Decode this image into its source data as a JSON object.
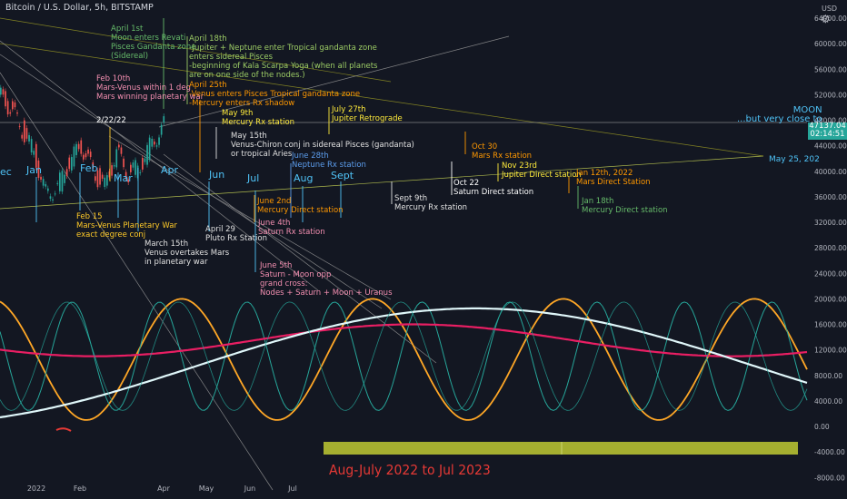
{
  "header": {
    "title": "Bitcoin / U.S. Dollar, 5h, BITSTAMP",
    "currency": "USD",
    "settings_icon": "gear-icon"
  },
  "price_tag": {
    "price": "47137.04",
    "countdown": "02:14:51"
  },
  "footer_caption": "Aug-July 2022 to Jul 2023",
  "moon_label": "MOON\n...but very close to",
  "may25_label": "May 25, 202",
  "colors": {
    "background": "#131722",
    "bull_candle": "#26a69a",
    "bear_candle": "#ef5350",
    "orange_wave": "#ffa726",
    "teal_wave": "#26a69a",
    "pink_wave": "#e91e63",
    "white_wave": "#e0f7fa",
    "yellow_bar": "#c0ca33"
  },
  "month_markers": [
    {
      "label": "ec",
      "color": "#4fc3f7"
    },
    {
      "label": "Jan",
      "color": "#4fc3f7"
    },
    {
      "label": "Feb",
      "color": "#4fc3f7"
    },
    {
      "label": "Mar",
      "color": "#4fc3f7"
    },
    {
      "label": "Apr",
      "color": "#4fc3f7"
    },
    {
      "label": "Jun",
      "color": "#4fc3f7"
    },
    {
      "label": "Jul",
      "color": "#4fc3f7"
    },
    {
      "label": "Aug",
      "color": "#4fc3f7"
    },
    {
      "label": "Sept",
      "color": "#4fc3f7"
    }
  ],
  "annotations": [
    {
      "text": "April 1st\nMoon enters Revati\nPisces Gandanta zone\n(Sidereal)",
      "color": "#66bb6a"
    },
    {
      "text": "April 18th\n-Jupiter + Neptune enter Tropical gandanta zone\nenters sidereal Pisces\n-beginning of Kala Scarpa Yoga (when all planets\nare on one side of the nodes.)",
      "color": "#9ccc65"
    },
    {
      "text": "Feb 10th\nMars-Venus within 1 deg\nMars winning planetary war",
      "color": "#f48fb1"
    },
    {
      "text": "April 25th\n-Venus enters Pisces Tropical gandanta zone\n-Mercury enters Rx shadow",
      "color": "#ff9800"
    },
    {
      "text": "2/22/22",
      "color": "#ffffff"
    },
    {
      "text": "May 9th\nMercury Rx station",
      "color": "#ffeb3b"
    },
    {
      "text": "July 27th\nJupiter Retrograde",
      "color": "#ffeb3b"
    },
    {
      "text": "May 15th\nVenus-Chiron conj in sidereal Pisces (gandanta)\nor tropical Aries",
      "color": "#e0e0e0"
    },
    {
      "text": "June 28th\nNeptune Rx station",
      "color": "#5c9ded"
    },
    {
      "text": "Oct 30\nMars Rx station",
      "color": "#ff9800"
    },
    {
      "text": "Nov 23rd\nJupiter Direct station",
      "color": "#ffeb3b"
    },
    {
      "text": "Oct 22\nSaturn Direct station",
      "color": "#ffffff"
    },
    {
      "text": "Jan 12th, 2022\nMars Direct Station",
      "color": "#ff9800"
    },
    {
      "text": "Sept 9th\nMercury Rx station",
      "color": "#e0e0e0"
    },
    {
      "text": "Jan 18th\nMercury Direct station",
      "color": "#66bb6a"
    },
    {
      "text": "June 2nd\nMercury Direct station",
      "color": "#ff9800"
    },
    {
      "text": "June 4th\nSaturn Rx station",
      "color": "#f48fb1"
    },
    {
      "text": "Feb 15\nMars-Venus Planetary War\nexact degree conj",
      "color": "#ffca28"
    },
    {
      "text": "March 15th\nVenus overtakes Mars\nin planetary war",
      "color": "#e0e0e0"
    },
    {
      "text": "April 29\nPluto Rx Station",
      "color": "#e0e0e0"
    },
    {
      "text": "June 5th\nSaturn - Moon opp\ngrand cross:\nNodes + Saturn + Moon + Uranus",
      "color": "#f48fb1"
    }
  ],
  "chart_data": {
    "type": "line",
    "title": "Bitcoin / U.S. Dollar, 5h, BITSTAMP",
    "y_axis": {
      "label": "USD",
      "ticks": [
        64000,
        60000,
        56000,
        52000,
        48000,
        44000,
        40000,
        36000,
        32000,
        28000,
        24000,
        20000,
        16000,
        12000,
        8000,
        4000,
        0,
        -4000,
        -8000
      ],
      "tick_labels": [
        "64000.00",
        "60000.00",
        "56000.00",
        "52000.00",
        "48000.00",
        "44000.00",
        "40000.00",
        "36000.00",
        "32000.00",
        "28000.00",
        "24000.00",
        "20000.00",
        "16000.00",
        "12000.00",
        "8000.00",
        "4000.00",
        "0.00",
        "-4000.00",
        "-8000.00"
      ],
      "ylim": [
        -8000,
        66000
      ]
    },
    "x_axis": {
      "tick_labels": [
        "2022",
        "Feb",
        "Apr",
        "May",
        "Jun",
        "Jul"
      ]
    },
    "last_price": 47137.04,
    "price_series": {
      "name": "BTCUSD",
      "x_dates": [
        "2021-12-27",
        "2022-01-03",
        "2022-01-10",
        "2022-01-17",
        "2022-01-24",
        "2022-01-31",
        "2022-02-07",
        "2022-02-14",
        "2022-02-21",
        "2022-02-28",
        "2022-03-07",
        "2022-03-14",
        "2022-03-21",
        "2022-03-28"
      ],
      "close": [
        50000,
        46500,
        43000,
        36500,
        37500,
        41500,
        44000,
        40000,
        37500,
        43000,
        39500,
        41000,
        44500,
        47137
      ]
    },
    "cycle_series": [
      {
        "color": "#ffa726",
        "amplitude": 9500,
        "center": 10500,
        "period_weeks": 12
      },
      {
        "color": "#26a69a",
        "amplitude": 8500,
        "center": 11000,
        "period_weeks": 5.5
      },
      {
        "color": "#e91e63",
        "amplitude": 2500,
        "center": 13500,
        "period_weeks": 40
      },
      {
        "color": "#e0f7fa",
        "amplitude": 9000,
        "center": 9500,
        "period_weeks": 70
      }
    ],
    "grid": false
  }
}
